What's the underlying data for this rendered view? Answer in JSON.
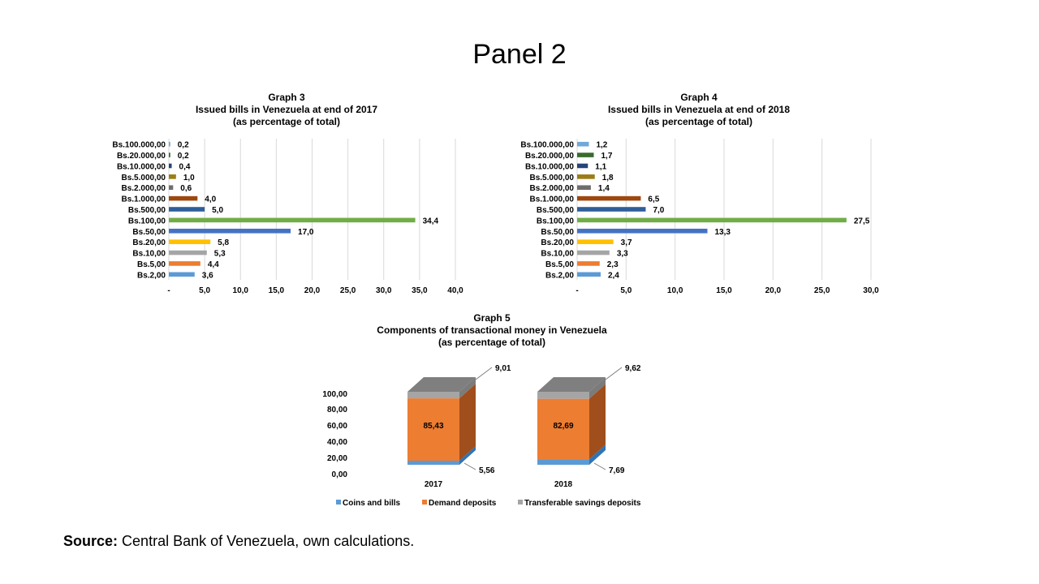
{
  "slide": {
    "title": "Panel 2",
    "source_label": "Source:",
    "source_text": "Central Bank of Venezuela, own calculations."
  },
  "chart_data": [
    {
      "type": "bar",
      "orientation": "horizontal",
      "title": "Graph 3",
      "subtitle": "Issued bills in Venezuela at end of 2017",
      "subtitle2": "(as percentage of total)",
      "categories": [
        "Bs.100.000,00",
        "Bs.20.000,00",
        "Bs.10.000,00",
        "Bs.5.000,00",
        "Bs.2.000,00",
        "Bs.1.000,00",
        "Bs.500,00",
        "Bs.100,00",
        "Bs.50,00",
        "Bs.20,00",
        "Bs.10,00",
        "Bs.5,00",
        "Bs.2,00"
      ],
      "values": [
        0.2,
        0.2,
        0.4,
        1.0,
        0.6,
        4.0,
        5.0,
        34.4,
        17.0,
        5.8,
        5.3,
        4.4,
        3.6
      ],
      "value_labels": [
        "0,2",
        "0,2",
        "0,4",
        "1,0",
        "0,6",
        "4,0",
        "5,0",
        "34,4",
        "17,0",
        "5,8",
        "5,3",
        "4,4",
        "3,6"
      ],
      "colors": [
        "#70a8da",
        "#386b2c",
        "#264478",
        "#9c7d17",
        "#6e6e6e",
        "#9e480e",
        "#2e5f9a",
        "#70ad47",
        "#4472c4",
        "#ffc000",
        "#a5a5a5",
        "#ed7d31",
        "#5b9bd5"
      ],
      "xlim": [
        0,
        40
      ],
      "xticks": [
        "-",
        "5,0",
        "10,0",
        "15,0",
        "20,0",
        "25,0",
        "30,0",
        "35,0",
        "40,0"
      ],
      "grid": true
    },
    {
      "type": "bar",
      "orientation": "horizontal",
      "title": "Graph 4",
      "subtitle": "Issued bills in Venezuela at end of 2018",
      "subtitle2": "(as percentage of total)",
      "categories": [
        "Bs.100.000,00",
        "Bs.20.000,00",
        "Bs.10.000,00",
        "Bs.5.000,00",
        "Bs.2.000,00",
        "Bs.1.000,00",
        "Bs.500,00",
        "Bs.100,00",
        "Bs.50,00",
        "Bs.20,00",
        "Bs.10,00",
        "Bs.5,00",
        "Bs.2,00"
      ],
      "values": [
        1.2,
        1.7,
        1.1,
        1.8,
        1.4,
        6.5,
        7.0,
        27.5,
        13.3,
        3.7,
        3.3,
        2.3,
        2.4
      ],
      "value_labels": [
        "1,2",
        "1,7",
        "1,1",
        "1,8",
        "1,4",
        "6,5",
        "7,0",
        "27,5",
        "13,3",
        "3,7",
        "3,3",
        "2,3",
        "2,4"
      ],
      "colors": [
        "#70a8da",
        "#386b2c",
        "#264478",
        "#9c7d17",
        "#6e6e6e",
        "#9e480e",
        "#2e5f9a",
        "#70ad47",
        "#4472c4",
        "#ffc000",
        "#a5a5a5",
        "#ed7d31",
        "#5b9bd5"
      ],
      "xlim": [
        0,
        30
      ],
      "xticks": [
        "-",
        "5,0",
        "10,0",
        "15,0",
        "20,0",
        "25,0",
        "30,0"
      ],
      "grid": true
    },
    {
      "type": "bar",
      "stacked": true,
      "style": "3d",
      "title": "Graph 5",
      "subtitle": "Components of transactional money in Venezuela",
      "subtitle2": "(as percentage of total)",
      "categories": [
        "2017",
        "2018"
      ],
      "series": [
        {
          "name": "Coins and bills",
          "values": [
            5.56,
            7.69
          ],
          "labels": [
            "5,56",
            "7,69"
          ],
          "color": "#5b9bd5"
        },
        {
          "name": "Demand deposits",
          "values": [
            85.43,
            82.69
          ],
          "labels": [
            "85,43",
            "82,69"
          ],
          "color": "#ed7d31"
        },
        {
          "name": "Transferable savings deposits",
          "values": [
            9.01,
            9.62
          ],
          "labels": [
            "9,01",
            "9,62"
          ],
          "color": "#a5a5a5"
        }
      ],
      "ylim": [
        0,
        100
      ],
      "yticks": [
        "0,00",
        "20,00",
        "40,00",
        "60,00",
        "80,00",
        "100,00"
      ],
      "legend": "bottom",
      "grid": false
    }
  ]
}
